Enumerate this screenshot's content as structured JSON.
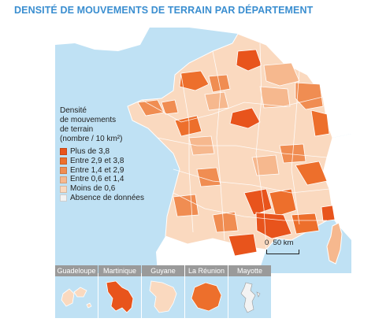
{
  "title": "DENSITÉ DE MOUVEMENTS DE TERRAIN PAR DÉPARTEMENT",
  "legend": {
    "title": "Densité\nde mouvements\nde terrain\n(nombre / 10 km²)",
    "items": [
      {
        "label": "Plus de 3,8",
        "color": "#e8541c"
      },
      {
        "label": "Entre 2,9 et 3,8",
        "color": "#ed6f2c"
      },
      {
        "label": "Entre 1,4 et 2,9",
        "color": "#f08d52"
      },
      {
        "label": "Entre 0,6 et 1,4",
        "color": "#f6b88e"
      },
      {
        "label": "Moins de 0,6",
        "color": "#fad9bf"
      },
      {
        "label": "Absence de données",
        "color": "#f3f3f3"
      }
    ]
  },
  "scale": {
    "label": "0  50 km"
  },
  "insets": [
    {
      "label": "Guadeloupe",
      "color": "#fad9bf"
    },
    {
      "label": "Martinique",
      "color": "#e8541c"
    },
    {
      "label": "Guyane",
      "color": "#fad9bf"
    },
    {
      "label": "La Réunion",
      "color": "#ed6f2c"
    },
    {
      "label": "Mayotte",
      "color": "#f3f3f3"
    }
  ],
  "colors": {
    "sea": "#bfe1f4",
    "land_abroad": "#ffffff",
    "title": "#3a8ed0",
    "border": "#ffffff"
  }
}
